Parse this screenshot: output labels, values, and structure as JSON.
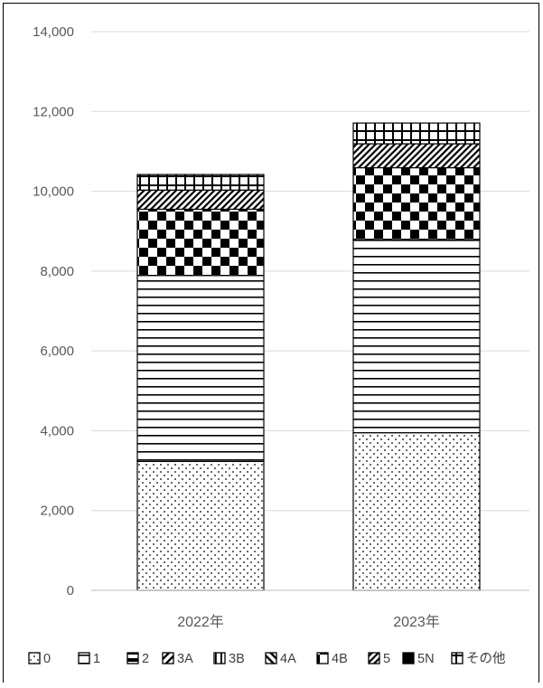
{
  "chart_data": {
    "type": "bar",
    "stacked": true,
    "categories": [
      "2022年",
      "2023年"
    ],
    "ylim": [
      0,
      14000
    ],
    "yticks": [
      "0",
      "2,000",
      "4,000",
      "6,000",
      "8,000",
      "10,000",
      "12,000",
      "14,000"
    ],
    "ytick_values": [
      0,
      2000,
      4000,
      6000,
      8000,
      10000,
      12000,
      14000
    ],
    "grid": true,
    "legend_position": "bottom",
    "series": [
      {
        "name": "0",
        "values": [
          3230,
          3950
        ],
        "pattern": "dots"
      },
      {
        "name": "1",
        "values": [
          4660,
          4840
        ],
        "pattern": "hlines"
      },
      {
        "name": "2",
        "values": [
          0,
          0
        ],
        "pattern": "half"
      },
      {
        "name": "3A",
        "values": [
          0,
          0
        ],
        "pattern": "diag"
      },
      {
        "name": "3B",
        "values": [
          0,
          0
        ],
        "pattern": "vlines"
      },
      {
        "name": "4A",
        "values": [
          0,
          0
        ],
        "pattern": "diag2"
      },
      {
        "name": "4B",
        "values": [
          1660,
          1800
        ],
        "pattern": "checker"
      },
      {
        "name": "5",
        "values": [
          480,
          600
        ],
        "pattern": "diagdense"
      },
      {
        "name": "5N",
        "values": [
          0,
          0
        ],
        "pattern": "solid"
      },
      {
        "name": "その他",
        "values": [
          390,
          520
        ],
        "pattern": "mixed"
      }
    ],
    "legend_labels": [
      "0",
      "1",
      "2",
      "3A",
      "3B",
      "4A",
      "4B",
      "5",
      "5N",
      "その他"
    ]
  }
}
